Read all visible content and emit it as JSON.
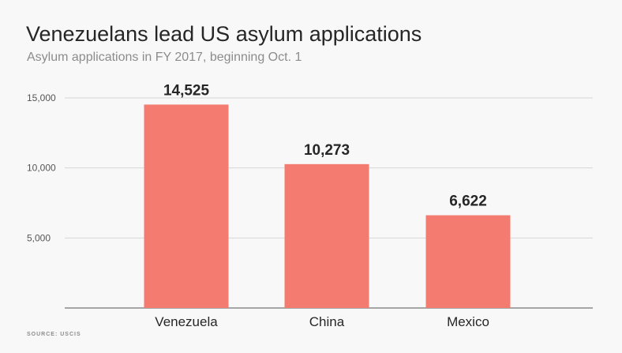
{
  "chart_data": {
    "type": "bar",
    "title": "Venezuelans lead US asylum applications",
    "subtitle": "Asylum applications in FY 2017, beginning Oct. 1",
    "source": "SOURCE: USCIS",
    "categories": [
      "Venezuela",
      "China",
      "Mexico"
    ],
    "values": [
      14525,
      10273,
      6622
    ],
    "data_labels": [
      "14,525",
      "10,273",
      "6,622"
    ],
    "ylim": [
      0,
      15000
    ],
    "yticks": [
      5000,
      10000,
      15000
    ],
    "ytick_labels": [
      "5,000",
      "10,000",
      "15,000"
    ],
    "grid": true,
    "bar_color": "#f47b70"
  }
}
